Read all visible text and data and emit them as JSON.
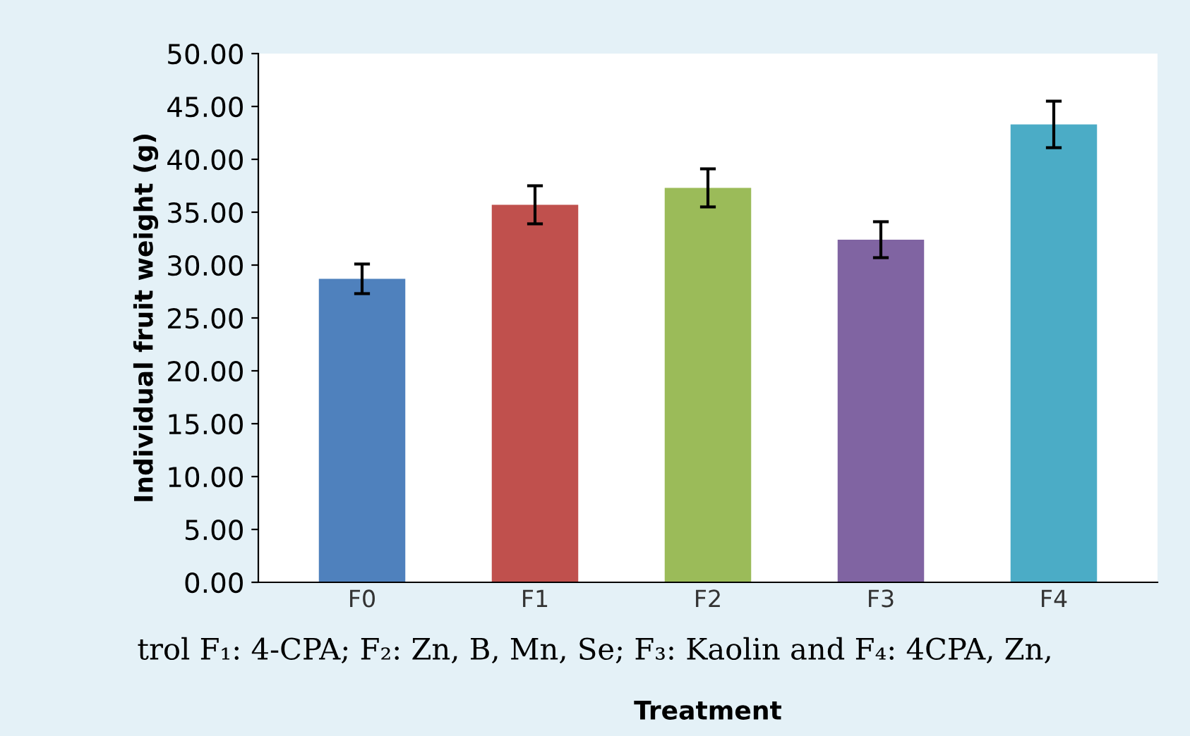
{
  "chart_data": {
    "type": "bar",
    "ylabel": "Individual fruit weight (g)",
    "xlabel": "Treatment",
    "categories": [
      "F0",
      "F1",
      "F2",
      "F3",
      "F4"
    ],
    "values": [
      28.7,
      35.7,
      37.3,
      32.4,
      43.3
    ],
    "errors": [
      1.4,
      1.8,
      1.8,
      1.7,
      2.2
    ],
    "colors": [
      "#4f81bd",
      "#c0504d",
      "#9bbb59",
      "#8064a2",
      "#4bacc6"
    ],
    "ylim": [
      0,
      50
    ],
    "yticks": [
      {
        "value": 0,
        "label": "0.00"
      },
      {
        "value": 5,
        "label": "5.00"
      },
      {
        "value": 10,
        "label": "10.00"
      },
      {
        "value": 15,
        "label": "15.00"
      },
      {
        "value": 20,
        "label": "20.00"
      },
      {
        "value": 25,
        "label": "25.00"
      },
      {
        "value": 30,
        "label": "30.00"
      },
      {
        "value": 35,
        "label": "35.00"
      },
      {
        "value": 40,
        "label": "40.00"
      },
      {
        "value": 45,
        "label": "45.00"
      },
      {
        "value": 50,
        "label": "50.00"
      }
    ],
    "grid": false,
    "legend": false,
    "annotations": [
      "trol F₁: 4-CPA; F₂: Zn, B, Mn, Se; F₃: Kaolin and F₄: 4CPA, Zn,"
    ]
  }
}
